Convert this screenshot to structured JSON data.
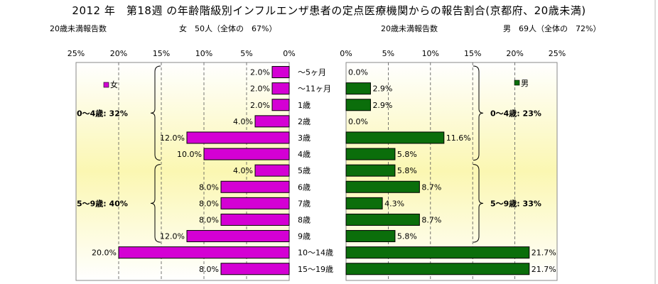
{
  "title": "2012 年　第18週 の年齢階級別インフルエンザ患者の定点医療機関からの報告割合(京都府、20歳未満)",
  "headers": {
    "female_count_label": "20歳未満報告数",
    "female_total": "女　50人（全体の　67%）",
    "male_count_label": "20歳未満報告数",
    "male_total": "男　69人（全体の　72%）"
  },
  "chart_data": {
    "type": "bar",
    "orientation": "horizontal-butterfly",
    "categories": [
      "～5ヶ月",
      "～11ヶ月",
      "1歳",
      "2歳",
      "3歳",
      "4歳",
      "5歳",
      "6歳",
      "7歳",
      "8歳",
      "9歳",
      "10～14歳",
      "15～19歳"
    ],
    "series": [
      {
        "name": "女",
        "color": "#d400d4",
        "values": [
          2.0,
          2.0,
          2.0,
          4.0,
          12.0,
          10.0,
          4.0,
          8.0,
          8.0,
          8.0,
          12.0,
          20.0,
          8.0
        ],
        "labels": [
          "2.0%",
          "2.0%",
          "2.0%",
          "4.0%",
          "12.0%",
          "10.0%",
          "4.0%",
          "8.0%",
          "8.0%",
          "8.0%",
          "12.0%",
          "20.0%",
          "8.0%"
        ]
      },
      {
        "name": "男",
        "color": "#0b6e0b",
        "values": [
          0.0,
          2.9,
          2.9,
          0.0,
          11.6,
          5.8,
          5.8,
          8.7,
          4.3,
          8.7,
          5.8,
          21.7,
          21.7
        ],
        "labels": [
          "0.0%",
          "2.9%",
          "2.9%",
          "0.0%",
          "11.6%",
          "5.8%",
          "5.8%",
          "8.7%",
          "4.3%",
          "8.7%",
          "5.8%",
          "21.7%",
          "21.7%"
        ]
      }
    ],
    "xlim": [
      0,
      25
    ],
    "xticks": [
      0,
      5,
      10,
      15,
      20,
      25
    ],
    "xtick_labels": [
      "0%",
      "5%",
      "10%",
      "15%",
      "20%",
      "25%"
    ],
    "grid": true,
    "plot_background": "gradient pale-yellow",
    "legend_female": "女",
    "legend_male": "男",
    "groups": [
      {
        "side": "female",
        "label": "0～4歳: 32%",
        "from": 0,
        "to": 5
      },
      {
        "side": "female",
        "label": "5～9歳: 40%",
        "from": 6,
        "to": 10
      },
      {
        "side": "male",
        "label": "0～4歳: 23%",
        "from": 0,
        "to": 5
      },
      {
        "side": "male",
        "label": "5～9歳: 33%",
        "from": 6,
        "to": 10
      }
    ]
  }
}
